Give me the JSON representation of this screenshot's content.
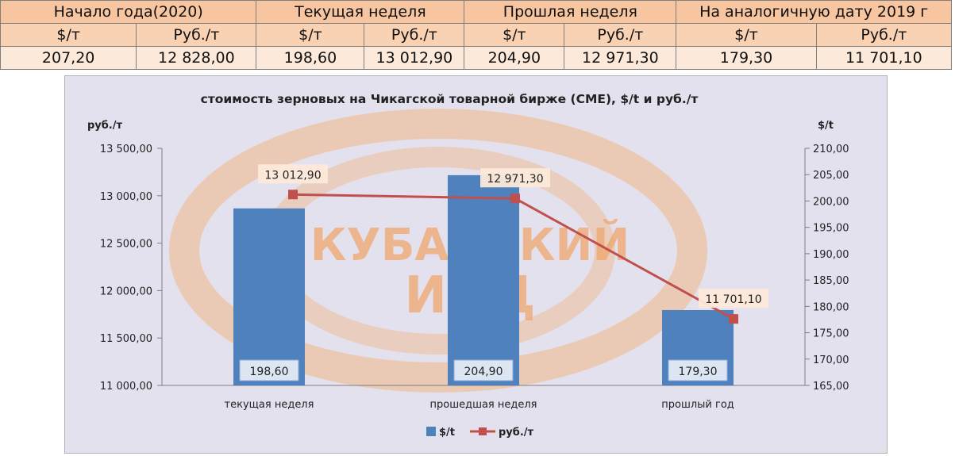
{
  "table": {
    "groups": [
      {
        "label": "Начало года(2020)"
      },
      {
        "label": "Текущая неделя"
      },
      {
        "label": "Прошлая неделя"
      },
      {
        "label": "На аналогичную дату 2019 г"
      }
    ],
    "units": [
      "$/т",
      "Руб./т",
      "$/т",
      "Руб./т",
      "$/т",
      "Руб./т",
      "$/т",
      "Руб./т"
    ],
    "values": [
      "207,20",
      "12 828,00",
      "198,60",
      "13 012,90",
      "204,90",
      "12 971,30",
      "179,30",
      "11 701,10"
    ]
  },
  "chart_data": {
    "type": "bar",
    "title": "стоимость зерновых на Чикагской товарной бирже (СМЕ), $/t и руб./т",
    "y_left_label": "руб./т",
    "y_right_label": "$/t",
    "categories": [
      "текущая неделя",
      "прошедшая неделя",
      "прошлый год"
    ],
    "ylim_left": [
      11000,
      13500
    ],
    "ylim_right": [
      165,
      210
    ],
    "yticks_left": [
      "13 500,00",
      "13 000,00",
      "12 500,00",
      "12 000,00",
      "11 500,00",
      "11 000,00"
    ],
    "yticks_right": [
      "210,00",
      "205,00",
      "200,00",
      "195,00",
      "190,00",
      "185,00",
      "180,00",
      "175,00",
      "170,00",
      "165,00"
    ],
    "series": [
      {
        "name": "$/t",
        "type": "bar",
        "axis": "right",
        "values": [
          198.6,
          204.9,
          179.3
        ],
        "labels": [
          "198,60",
          "204,90",
          "179,30"
        ],
        "color": "#4f81bd"
      },
      {
        "name": "руб./т",
        "type": "line",
        "axis": "left",
        "values": [
          13012.9,
          12971.3,
          11701.1
        ],
        "labels": [
          "13 012,90",
          "12 971,30",
          "11 701,10"
        ],
        "color": "#c0504d"
      }
    ],
    "legend_position": "bottom",
    "grid": false
  },
  "watermark": {
    "line1": "КУБАНСКИЙ",
    "line2": "ИКЦ",
    "color": "#f0a060"
  }
}
